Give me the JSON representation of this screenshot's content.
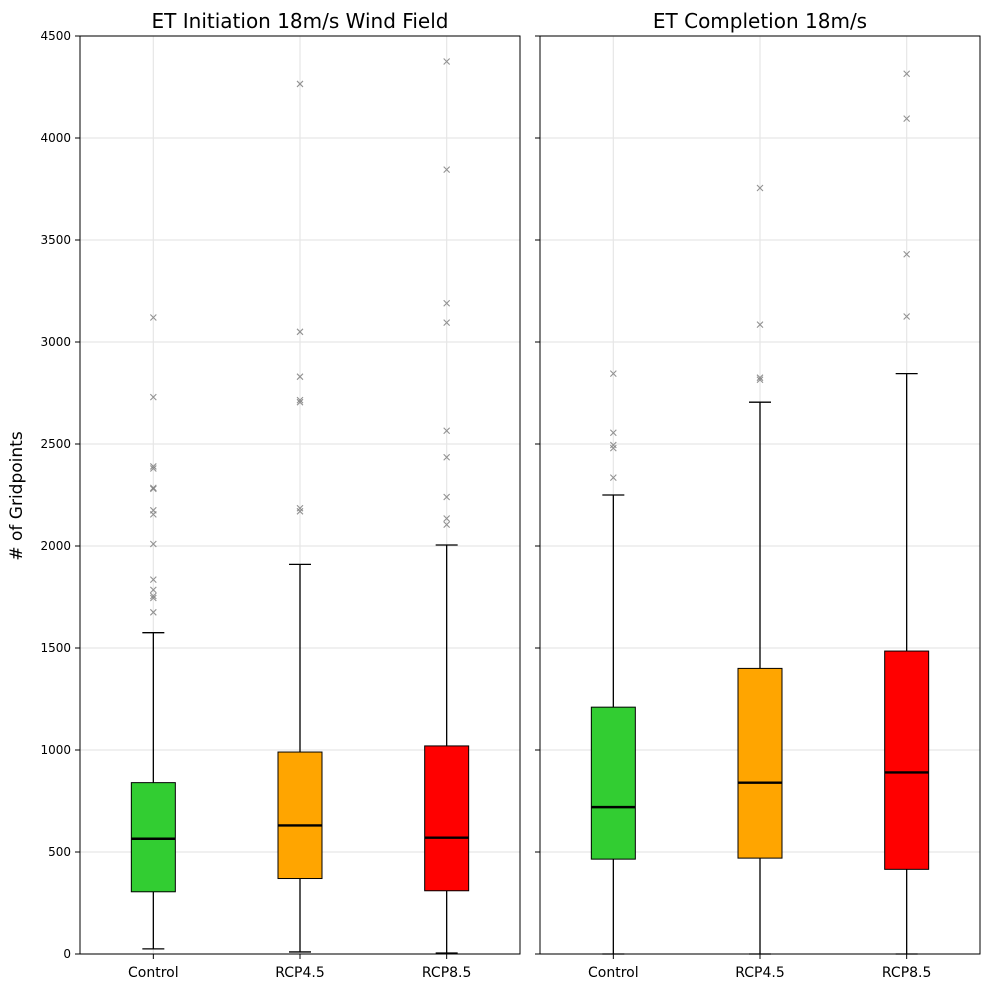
{
  "ylabel": "# of Gridpoints",
  "chart_data": [
    {
      "type": "box",
      "title": "ET Initiation 18m/s Wind Field",
      "ylabel": "# of Gridpoints",
      "ylim": [
        0,
        4500
      ],
      "yticks": [
        0,
        500,
        1000,
        1500,
        2000,
        2500,
        3000,
        3500,
        4000,
        4500
      ],
      "grid": true,
      "categories": [
        "Control",
        "RCP4.5",
        "RCP8.5"
      ],
      "boxes": [
        {
          "name": "Control",
          "color": "#32cd32",
          "whislo": 25,
          "q1": 305,
          "median": 565,
          "q3": 840,
          "whishi": 1575,
          "fliers": [
            1675,
            1745,
            1755,
            1785,
            1835,
            2010,
            2155,
            2175,
            2280,
            2285,
            2380,
            2390,
            2730,
            3120
          ]
        },
        {
          "name": "RCP4.5",
          "color": "#ffa500",
          "whislo": 10,
          "q1": 370,
          "median": 630,
          "q3": 990,
          "whishi": 1910,
          "fliers": [
            2170,
            2185,
            2705,
            2715,
            2830,
            3050,
            4265
          ]
        },
        {
          "name": "RCP8.5",
          "color": "#ff0000",
          "whislo": 5,
          "q1": 310,
          "median": 570,
          "q3": 1020,
          "whishi": 2005,
          "fliers": [
            2105,
            2135,
            2240,
            2435,
            2565,
            3095,
            3190,
            3845,
            4375
          ]
        }
      ]
    },
    {
      "type": "box",
      "title": "ET Completion 18m/s",
      "ylim": [
        0,
        4500
      ],
      "grid": true,
      "categories": [
        "Control",
        "RCP4.5",
        "RCP8.5"
      ],
      "boxes": [
        {
          "name": "Control",
          "color": "#32cd32",
          "whislo": 0,
          "q1": 465,
          "median": 720,
          "q3": 1210,
          "whishi": 2250,
          "fliers": [
            2335,
            2480,
            2495,
            2555,
            2845
          ]
        },
        {
          "name": "RCP4.5",
          "color": "#ffa500",
          "whislo": 0,
          "q1": 470,
          "median": 840,
          "q3": 1400,
          "whishi": 2705,
          "fliers": [
            2815,
            2825,
            3085,
            3755
          ]
        },
        {
          "name": "RCP8.5",
          "color": "#ff0000",
          "whislo": 0,
          "q1": 415,
          "median": 890,
          "q3": 1485,
          "whishi": 2845,
          "fliers": [
            3125,
            3430,
            4095,
            4315
          ]
        }
      ]
    }
  ]
}
